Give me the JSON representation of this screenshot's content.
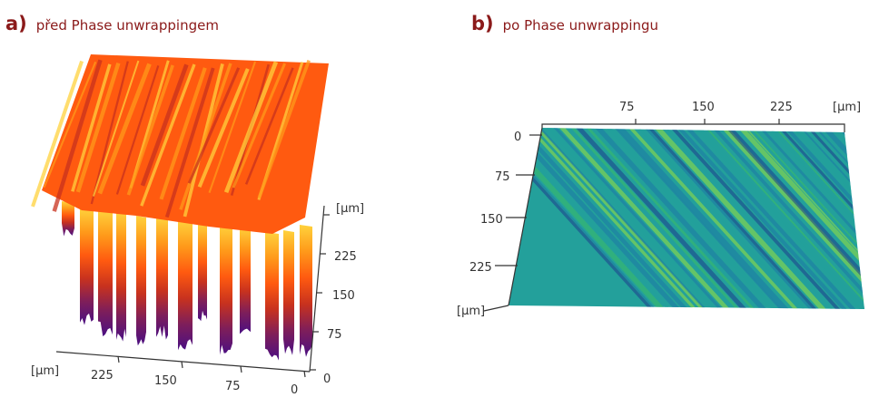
{
  "colors": {
    "heading": "#8b1a1a",
    "axis": "#333333",
    "panel_a_gradient": [
      "#ffd23c",
      "#ff9a1a",
      "#ff5a10",
      "#c8321e",
      "#7e1e5a",
      "#4a0f83"
    ],
    "panel_b_gradient": [
      "#1e3c8c",
      "#1e78a5",
      "#23a09b",
      "#3cbe64",
      "#9be13c"
    ]
  },
  "panel_a": {
    "letter": "a)",
    "caption": "před Phase unwrappingem",
    "axis_unit": "[µm]",
    "front_axis_ticks": [
      "225",
      "150",
      "75",
      "0"
    ],
    "side_axis_ticks": [
      "0",
      "75",
      "150",
      "225"
    ]
  },
  "panel_b": {
    "letter": "b)",
    "caption": "po Phase unwrappingu",
    "axis_unit": "[µm]",
    "top_axis_ticks": [
      "75",
      "150",
      "225"
    ],
    "left_axis_ticks": [
      "0",
      "75",
      "150",
      "225"
    ]
  }
}
